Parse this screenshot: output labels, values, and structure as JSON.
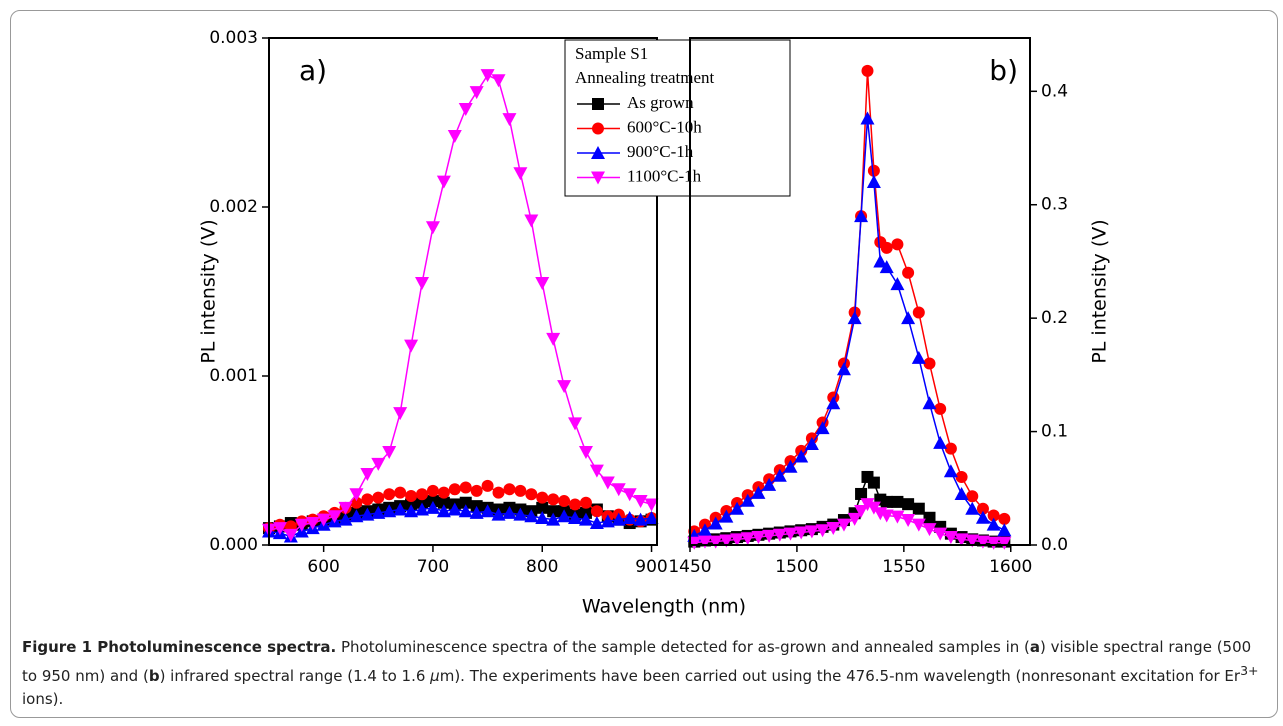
{
  "chart_data": [
    {
      "type": "line",
      "panel_label": "a)",
      "ylabel": "PL intensity (V)",
      "xlabel": "Wavelength (nm)",
      "y_axis_side": "left",
      "legend_title": "Sample S1",
      "legend_subtitle": "Annealing treatment",
      "xlim": [
        550,
        905
      ],
      "xticks": [
        600,
        700,
        800,
        900
      ],
      "ylim": [
        0,
        0.003
      ],
      "yticks": [
        {
          "value": 0,
          "label": "0.000"
        },
        0.001,
        0.002,
        0.003
      ],
      "x": [
        550,
        560,
        570,
        580,
        590,
        600,
        610,
        620,
        630,
        640,
        650,
        660,
        670,
        680,
        690,
        700,
        710,
        720,
        730,
        740,
        750,
        760,
        770,
        780,
        790,
        800,
        810,
        820,
        830,
        840,
        850,
        860,
        870,
        880,
        890,
        900
      ],
      "series": [
        {
          "name": "As grown",
          "color": "#000000",
          "marker": "square",
          "values": [
            0.0001,
            0.00011,
            0.00013,
            0.00012,
            0.00014,
            0.00015,
            0.00016,
            0.00018,
            0.00019,
            0.0002,
            0.00021,
            0.00022,
            0.00023,
            0.00024,
            0.00025,
            0.00026,
            0.00025,
            0.00024,
            0.00025,
            0.00023,
            0.00022,
            0.00021,
            0.00022,
            0.00021,
            0.0002,
            0.00022,
            0.0002,
            0.0002,
            0.00018,
            0.00019,
            0.00021,
            0.00017,
            0.00015,
            0.00013,
            0.00014,
            0.00015
          ]
        },
        {
          "name": "600°C-10h",
          "color": "#ff0000",
          "marker": "circle",
          "values": [
            0.0001,
            0.00012,
            0.00011,
            0.00014,
            0.00015,
            0.00017,
            0.00019,
            0.00022,
            0.00025,
            0.00027,
            0.00028,
            0.0003,
            0.00031,
            0.00029,
            0.0003,
            0.00032,
            0.00031,
            0.00033,
            0.00034,
            0.00032,
            0.00035,
            0.00031,
            0.00033,
            0.00032,
            0.0003,
            0.00028,
            0.00027,
            0.00026,
            0.00024,
            0.00025,
            0.0002,
            0.00017,
            0.00018,
            0.00015,
            0.00014,
            0.00016
          ]
        },
        {
          "name": "900°C-1h",
          "color": "#0000ff",
          "marker": "triangle-up",
          "values": [
            8e-05,
            7e-05,
            5e-05,
            8e-05,
            0.0001,
            0.00012,
            0.00014,
            0.00015,
            0.00017,
            0.00018,
            0.00019,
            0.0002,
            0.00021,
            0.0002,
            0.00021,
            0.00022,
            0.0002,
            0.00021,
            0.0002,
            0.00019,
            0.0002,
            0.00018,
            0.00019,
            0.00018,
            0.00017,
            0.00016,
            0.00015,
            0.00017,
            0.00016,
            0.00015,
            0.00013,
            0.00014,
            0.00015,
            0.00016,
            0.00015,
            0.00016
          ]
        },
        {
          "name": "1100°C-1h",
          "color": "#ff00ff",
          "marker": "triangle-down",
          "values": [
            9e-05,
            0.0001,
            6e-05,
            0.00012,
            0.00013,
            0.00015,
            0.00017,
            0.00022,
            0.0003,
            0.00042,
            0.00048,
            0.00055,
            0.00078,
            0.00118,
            0.00155,
            0.00188,
            0.00215,
            0.00242,
            0.00258,
            0.00268,
            0.00278,
            0.00275,
            0.00252,
            0.0022,
            0.00192,
            0.00155,
            0.00122,
            0.00094,
            0.00072,
            0.00055,
            0.00044,
            0.00037,
            0.00033,
            0.0003,
            0.00026,
            0.00024
          ]
        }
      ]
    },
    {
      "type": "line",
      "panel_label": "b)",
      "ylabel": "PL intensity (V)",
      "y_axis_side": "right",
      "xlim": [
        1450,
        1609
      ],
      "xticks": [
        1450,
        1500,
        1550,
        1600
      ],
      "ylim": [
        0,
        0.447
      ],
      "yticks": [
        {
          "value": 0,
          "label": "0.0"
        },
        0.1,
        0.2,
        0.3,
        0.4
      ],
      "x": [
        1452,
        1457,
        1462,
        1467,
        1472,
        1477,
        1482,
        1487,
        1492,
        1497,
        1502,
        1507,
        1512,
        1517,
        1522,
        1527,
        1530,
        1533,
        1536,
        1539,
        1542,
        1547,
        1552,
        1557,
        1562,
        1567,
        1572,
        1577,
        1582,
        1587,
        1592,
        1597
      ],
      "series": [
        {
          "color": "#000000",
          "marker": "square",
          "values": [
            0.003,
            0.004,
            0.005,
            0.006,
            0.007,
            0.008,
            0.009,
            0.01,
            0.011,
            0.012,
            0.013,
            0.014,
            0.016,
            0.018,
            0.022,
            0.028,
            0.045,
            0.06,
            0.055,
            0.04,
            0.038,
            0.038,
            0.036,
            0.032,
            0.024,
            0.016,
            0.01,
            0.007,
            0.005,
            0.004,
            0.003,
            0.003
          ]
        },
        {
          "color": "#ff0000",
          "marker": "circle",
          "values": [
            0.012,
            0.018,
            0.024,
            0.03,
            0.037,
            0.044,
            0.051,
            0.058,
            0.066,
            0.074,
            0.083,
            0.094,
            0.108,
            0.13,
            0.16,
            0.205,
            0.29,
            0.418,
            0.33,
            0.267,
            0.262,
            0.265,
            0.24,
            0.205,
            0.16,
            0.12,
            0.085,
            0.06,
            0.043,
            0.032,
            0.026,
            0.023
          ]
        },
        {
          "color": "#0000ff",
          "marker": "triangle-up",
          "values": [
            0.008,
            0.013,
            0.019,
            0.025,
            0.032,
            0.039,
            0.046,
            0.053,
            0.061,
            0.069,
            0.078,
            0.089,
            0.103,
            0.125,
            0.155,
            0.2,
            0.29,
            0.376,
            0.32,
            0.25,
            0.245,
            0.23,
            0.2,
            0.165,
            0.125,
            0.09,
            0.065,
            0.045,
            0.032,
            0.024,
            0.018,
            0.013
          ]
        },
        {
          "color": "#ff00ff",
          "marker": "triangle-down",
          "values": [
            0.002,
            0.003,
            0.003,
            0.004,
            0.005,
            0.006,
            0.007,
            0.008,
            0.009,
            0.01,
            0.011,
            0.012,
            0.013,
            0.015,
            0.018,
            0.023,
            0.03,
            0.036,
            0.033,
            0.028,
            0.026,
            0.025,
            0.022,
            0.018,
            0.014,
            0.01,
            0.007,
            0.005,
            0.004,
            0.003,
            0.002,
            0.002
          ]
        }
      ]
    }
  ],
  "caption": {
    "title": "Figure 1 Photoluminescence spectra.",
    "parts": [
      " Photoluminescence spectra of the sample detected for as-grown and annealed samples in (",
      "a",
      ") visible spectral range (500 to 950 nm) and (",
      "b",
      ") infrared spectral range (1.4 to 1.6 ",
      "μ",
      "m). The experiments have been carried out using the 476.5-nm wavelength (nonresonant excitation for Er",
      "3+",
      " ions)."
    ]
  }
}
